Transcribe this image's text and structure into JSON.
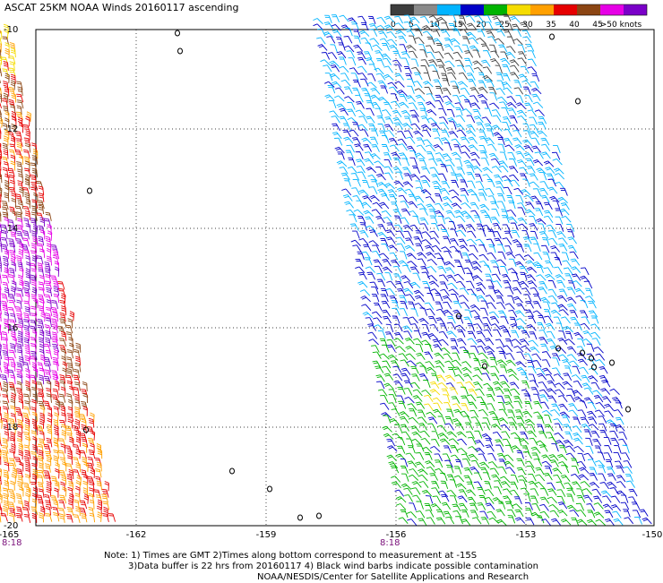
{
  "title": "ASCAT 25KM NOAA Winds 20160117 ascending",
  "color_scale": {
    "labels": [
      "0",
      "5",
      "10",
      "15",
      "20",
      "25",
      "30",
      "35",
      "40",
      "45",
      ">50 knots"
    ],
    "colors": [
      "#3d3d3d",
      "#8a8a8a",
      "#00b4ff",
      "#0000c8",
      "#00b400",
      "#f5dc00",
      "#ffa000",
      "#e60000",
      "#8b4513",
      "#e600e6",
      "#7a00c8"
    ]
  },
  "axes": {
    "lon_labels": [
      "-165",
      "-162",
      "-159",
      "-156",
      "-153",
      "-150"
    ],
    "lat_labels": [
      "-10",
      "-12",
      "-14",
      "-16",
      "-18",
      "-20"
    ]
  },
  "time_labels": [
    "8:18",
    "8:18"
  ],
  "notes": {
    "line1": "Note: 1) Times are GMT 2)Times along bottom correspond to measurement at -15S",
    "line2": "3)Data buffer is 22 hrs from 20160117 4) Black wind barbs indicate possible contamination",
    "line3": "NOAA/NESDIS/Center for Satellite Applications and Research"
  }
}
